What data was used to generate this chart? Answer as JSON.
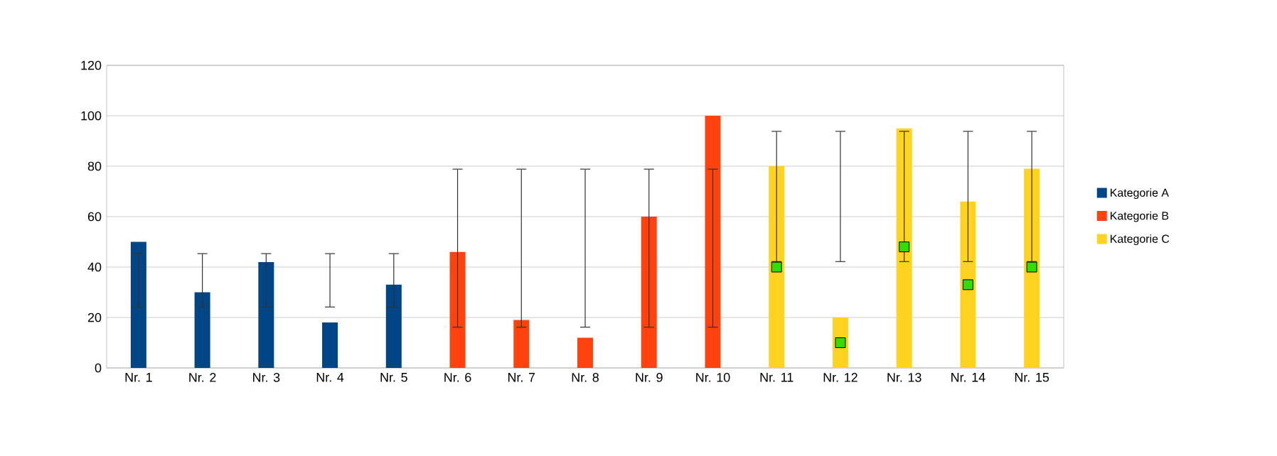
{
  "chart_data": {
    "type": "bar",
    "categories": [
      "Nr. 1",
      "Nr. 2",
      "Nr. 3",
      "Nr. 4",
      "Nr. 5",
      "Nr. 6",
      "Nr. 7",
      "Nr. 8",
      "Nr. 9",
      "Nr. 10",
      "Nr. 11",
      "Nr. 12",
      "Nr. 13",
      "Nr. 14",
      "Nr. 15"
    ],
    "series": [
      {
        "name": "Kategorie A",
        "color": "#004586",
        "values": [
          50,
          30,
          42,
          18,
          33,
          null,
          null,
          null,
          null,
          null,
          null,
          null,
          null,
          null,
          null
        ],
        "errors": [
          [
            24,
            45.5
          ],
          [
            24,
            45.5
          ],
          [
            24,
            45.5
          ],
          [
            24,
            45.5
          ],
          [
            24,
            45.5
          ],
          null,
          null,
          null,
          null,
          null,
          null,
          null,
          null,
          null,
          null
        ]
      },
      {
        "name": "Kategorie B",
        "color": "#ff420e",
        "values": [
          null,
          null,
          null,
          null,
          null,
          46,
          19,
          12,
          60,
          100,
          null,
          null,
          null,
          null,
          null
        ],
        "errors": [
          null,
          null,
          null,
          null,
          null,
          [
            16,
            79
          ],
          [
            16,
            79
          ],
          [
            16,
            79
          ],
          [
            16,
            79
          ],
          [
            16,
            79
          ],
          null,
          null,
          null,
          null,
          null
        ]
      },
      {
        "name": "Kategorie C",
        "color": "#ffd320",
        "values": [
          null,
          null,
          null,
          null,
          null,
          null,
          null,
          null,
          null,
          null,
          80,
          20,
          95,
          66,
          79
        ],
        "errors": [
          null,
          null,
          null,
          null,
          null,
          null,
          null,
          null,
          null,
          null,
          [
            42,
            94
          ],
          [
            42,
            94
          ],
          [
            42,
            94
          ],
          [
            42,
            94
          ],
          [
            42,
            94
          ]
        ]
      },
      {
        "type": "scatter",
        "color": "#33dd00",
        "marker": "square",
        "values": [
          null,
          null,
          null,
          null,
          null,
          null,
          null,
          null,
          null,
          null,
          40,
          10,
          48,
          33,
          40
        ]
      }
    ],
    "ylim": [
      0,
      120
    ],
    "yticks": [
      0,
      20,
      40,
      60,
      80,
      100,
      120
    ],
    "grid": "y",
    "legend": "right"
  }
}
